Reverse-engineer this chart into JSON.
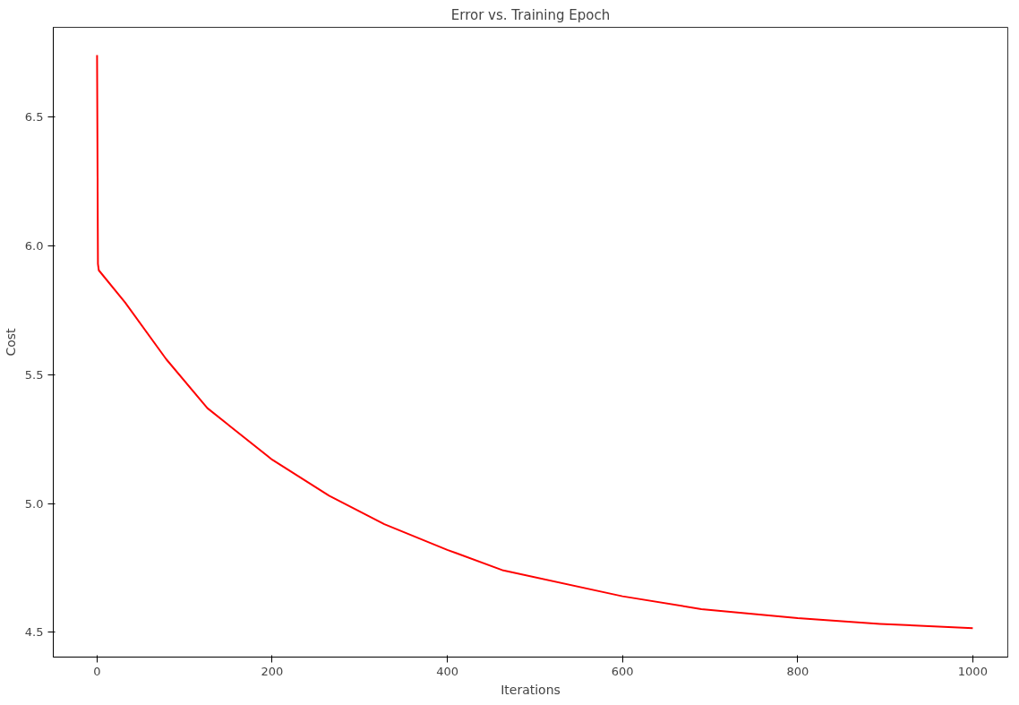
{
  "chart_data": {
    "type": "line",
    "title": "Error vs. Training Epoch",
    "xlabel": "Iterations",
    "ylabel": "Cost",
    "x": [
      0,
      1,
      2,
      32,
      79,
      126,
      200,
      265,
      328,
      400,
      464,
      600,
      690,
      800,
      894,
      1000
    ],
    "series": [
      {
        "color": "#ff0000",
        "values": [
          6.74,
          5.93,
          5.905,
          5.78,
          5.56,
          5.37,
          5.17,
          5.03,
          4.92,
          4.82,
          4.74,
          4.64,
          4.59,
          4.555,
          4.533,
          4.516
        ]
      }
    ],
    "xlim": [
      -50,
      1040
    ],
    "ylim": [
      4.404,
      6.848
    ],
    "xticks": [
      0,
      200,
      400,
      600,
      800,
      1000
    ],
    "yticks": [
      {
        "value": 4.5,
        "label": "4.5"
      },
      {
        "value": 5.0,
        "label": "5.0"
      },
      {
        "value": 5.5,
        "label": "5.5"
      },
      {
        "value": 6.0,
        "label": "6.0"
      },
      {
        "value": 6.5,
        "label": "6.5"
      }
    ],
    "grid": false,
    "marker": "none",
    "line_style": "solid"
  }
}
